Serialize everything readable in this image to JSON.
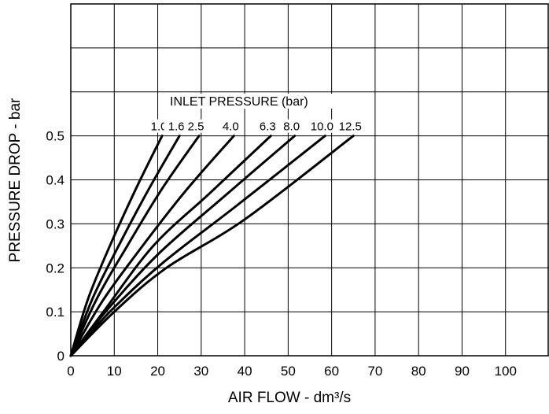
{
  "chart_data": {
    "type": "line",
    "title": "",
    "xlabel": "AIR FLOW - dm³/s",
    "ylabel": "PRESSURE DROP - bar",
    "legend_title": "INLET PRESSURE (bar)",
    "xlim": [
      0,
      110
    ],
    "ylim": [
      0,
      0.8
    ],
    "x_ticks": [
      0,
      10,
      20,
      30,
      40,
      50,
      60,
      70,
      80,
      90,
      100
    ],
    "x_tick_labels": [
      "0",
      "10",
      "20",
      "30",
      "40",
      "50",
      "60",
      "70",
      "80",
      "90",
      "100"
    ],
    "y_ticks": [
      0,
      0.1,
      0.2,
      0.3,
      0.4,
      0.5
    ],
    "y_tick_labels": [
      "0",
      "0.1",
      "0.2",
      "0.3",
      "0.4",
      "0.5"
    ],
    "grid": true,
    "series": [
      {
        "name": "1.0",
        "points": [
          [
            0,
            0
          ],
          [
            4,
            0.13
          ],
          [
            9,
            0.25
          ],
          [
            15,
            0.38
          ],
          [
            21,
            0.5
          ]
        ]
      },
      {
        "name": "1.6",
        "points": [
          [
            0,
            0
          ],
          [
            5,
            0.13
          ],
          [
            11,
            0.25
          ],
          [
            18,
            0.38
          ],
          [
            25,
            0.5
          ]
        ]
      },
      {
        "name": "2.5",
        "points": [
          [
            0,
            0
          ],
          [
            6,
            0.13
          ],
          [
            13,
            0.25
          ],
          [
            21,
            0.38
          ],
          [
            29.5,
            0.5
          ]
        ]
      },
      {
        "name": "4.0",
        "points": [
          [
            0,
            0
          ],
          [
            7,
            0.12
          ],
          [
            15,
            0.23
          ],
          [
            26,
            0.37
          ],
          [
            37.5,
            0.5
          ]
        ]
      },
      {
        "name": "6.3",
        "points": [
          [
            0,
            0
          ],
          [
            7.5,
            0.1
          ],
          [
            19,
            0.25
          ],
          [
            32,
            0.37
          ],
          [
            46,
            0.5
          ]
        ]
      },
      {
        "name": "8.0",
        "points": [
          [
            0,
            0
          ],
          [
            8,
            0.1
          ],
          [
            20,
            0.23
          ],
          [
            35,
            0.36
          ],
          [
            51.5,
            0.5
          ]
        ]
      },
      {
        "name": "10.0",
        "points": [
          [
            0,
            0
          ],
          [
            9,
            0.1
          ],
          [
            21,
            0.21
          ],
          [
            38,
            0.34
          ],
          [
            58.5,
            0.5
          ]
        ]
      },
      {
        "name": "12.5",
        "points": [
          [
            0,
            0
          ],
          [
            10,
            0.1
          ],
          [
            22,
            0.2
          ],
          [
            40,
            0.31
          ],
          [
            65,
            0.5
          ]
        ]
      }
    ]
  }
}
